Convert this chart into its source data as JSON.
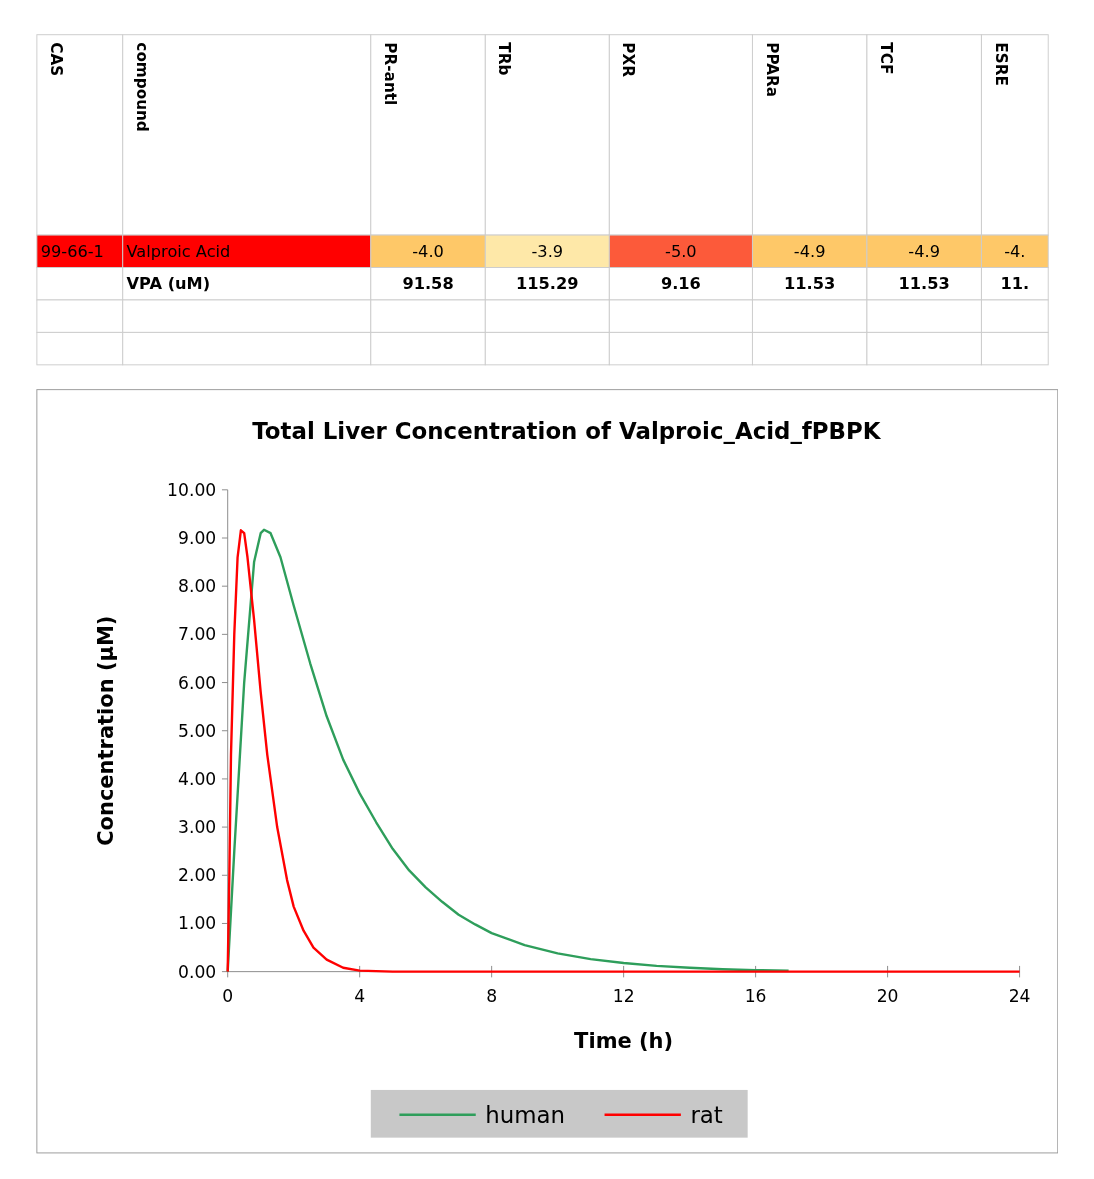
{
  "chart_data": [
    {
      "type": "other",
      "categories": [
        "CAS",
        "compound",
        "PR-antl",
        "TRb",
        "PXR",
        "PPARa",
        "TCF",
        "ESRE"
      ],
      "cell_labels": [
        [
          "99-66-1",
          "Valproic Acid",
          "-4.0",
          "-3.9",
          "-5.0",
          "-4.9",
          "-4.9",
          "-4."
        ],
        [
          null,
          "VPA (uM)",
          "91.58",
          "115.29",
          "9.16",
          "11.53",
          "11.53",
          "11."
        ],
        [
          null,
          null,
          null,
          null,
          null,
          null,
          null,
          null
        ],
        [
          null,
          null,
          null,
          null,
          null,
          null,
          null,
          null
        ]
      ],
      "colors": [
        [
          "#ff0000",
          "#ff0000",
          "#fec868",
          "#fee8a8",
          "#fc5a3a",
          "#fec868",
          "#fec868",
          "#fec868"
        ],
        [
          "#ffffff",
          "#ffffff",
          "#ffffff",
          "#ffffff",
          "#ffffff",
          "#ffffff",
          "#ffffff",
          "#ffffff"
        ],
        [
          "#ffffff",
          "#ffffff",
          "#ffffff",
          "#ffffff",
          "#ffffff",
          "#ffffff",
          "#ffffff",
          "#ffffff"
        ],
        [
          "#ffffff",
          "#ffffff",
          "#ffffff",
          "#ffffff",
          "#ffffff",
          "#ffffff",
          "#ffffff",
          "#ffffff"
        ]
      ]
    },
    {
      "type": "line",
      "title": "Total Liver Concentration of Valproic_Acid_fPBPK",
      "xlabel": "Time (h)",
      "ylabel": "Concentration (µM)",
      "xlim": [
        0,
        24
      ],
      "xticks": [
        0,
        4,
        8,
        12,
        16,
        20,
        24
      ],
      "ylim": [
        0,
        10
      ],
      "yticks": [
        {
          "value": 0,
          "label": "0.00"
        },
        {
          "value": 1,
          "label": "1.00"
        },
        {
          "value": 2,
          "label": "2.00"
        },
        {
          "value": 3,
          "label": "3.00"
        },
        {
          "value": 4,
          "label": "4.00"
        },
        {
          "value": 5,
          "label": "5.00"
        },
        {
          "value": 6,
          "label": "6.00"
        },
        {
          "value": 7,
          "label": "7.00"
        },
        {
          "value": 8,
          "label": "8.00"
        },
        {
          "value": 9,
          "label": "9.00"
        },
        {
          "value": 10,
          "label": "10.00"
        }
      ],
      "legend": "bottom",
      "marker": "none",
      "line_style": "solid",
      "series": [
        {
          "name": "human",
          "color": "#2e9e5b",
          "x": [
            0,
            0.2,
            0.5,
            0.8,
            1.0,
            1.1,
            1.3,
            1.6,
            2,
            2.5,
            3,
            3.5,
            4,
            4.5,
            5,
            5.5,
            6,
            6.5,
            7,
            7.5,
            8,
            9,
            10,
            11,
            12,
            13,
            14,
            15,
            16,
            17
          ],
          "values": [
            0,
            2.5,
            6,
            8.5,
            9.1,
            9.17,
            9.1,
            8.6,
            7.6,
            6.4,
            5.3,
            4.4,
            3.7,
            3.1,
            2.55,
            2.1,
            1.75,
            1.45,
            1.18,
            0.98,
            0.8,
            0.55,
            0.38,
            0.26,
            0.18,
            0.12,
            0.08,
            0.05,
            0.03,
            0.02
          ]
        },
        {
          "name": "rat",
          "color": "#ff0000",
          "x": [
            0,
            0.05,
            0.1,
            0.2,
            0.3,
            0.4,
            0.5,
            0.6,
            0.8,
            1.0,
            1.2,
            1.5,
            1.8,
            2,
            2.3,
            2.6,
            3,
            3.5,
            4,
            5,
            24
          ],
          "values": [
            0,
            2,
            4.5,
            7,
            8.6,
            9.16,
            9.1,
            8.6,
            7.3,
            5.8,
            4.5,
            3.0,
            1.9,
            1.35,
            0.85,
            0.5,
            0.25,
            0.08,
            0.02,
            0,
            0
          ]
        }
      ]
    }
  ]
}
